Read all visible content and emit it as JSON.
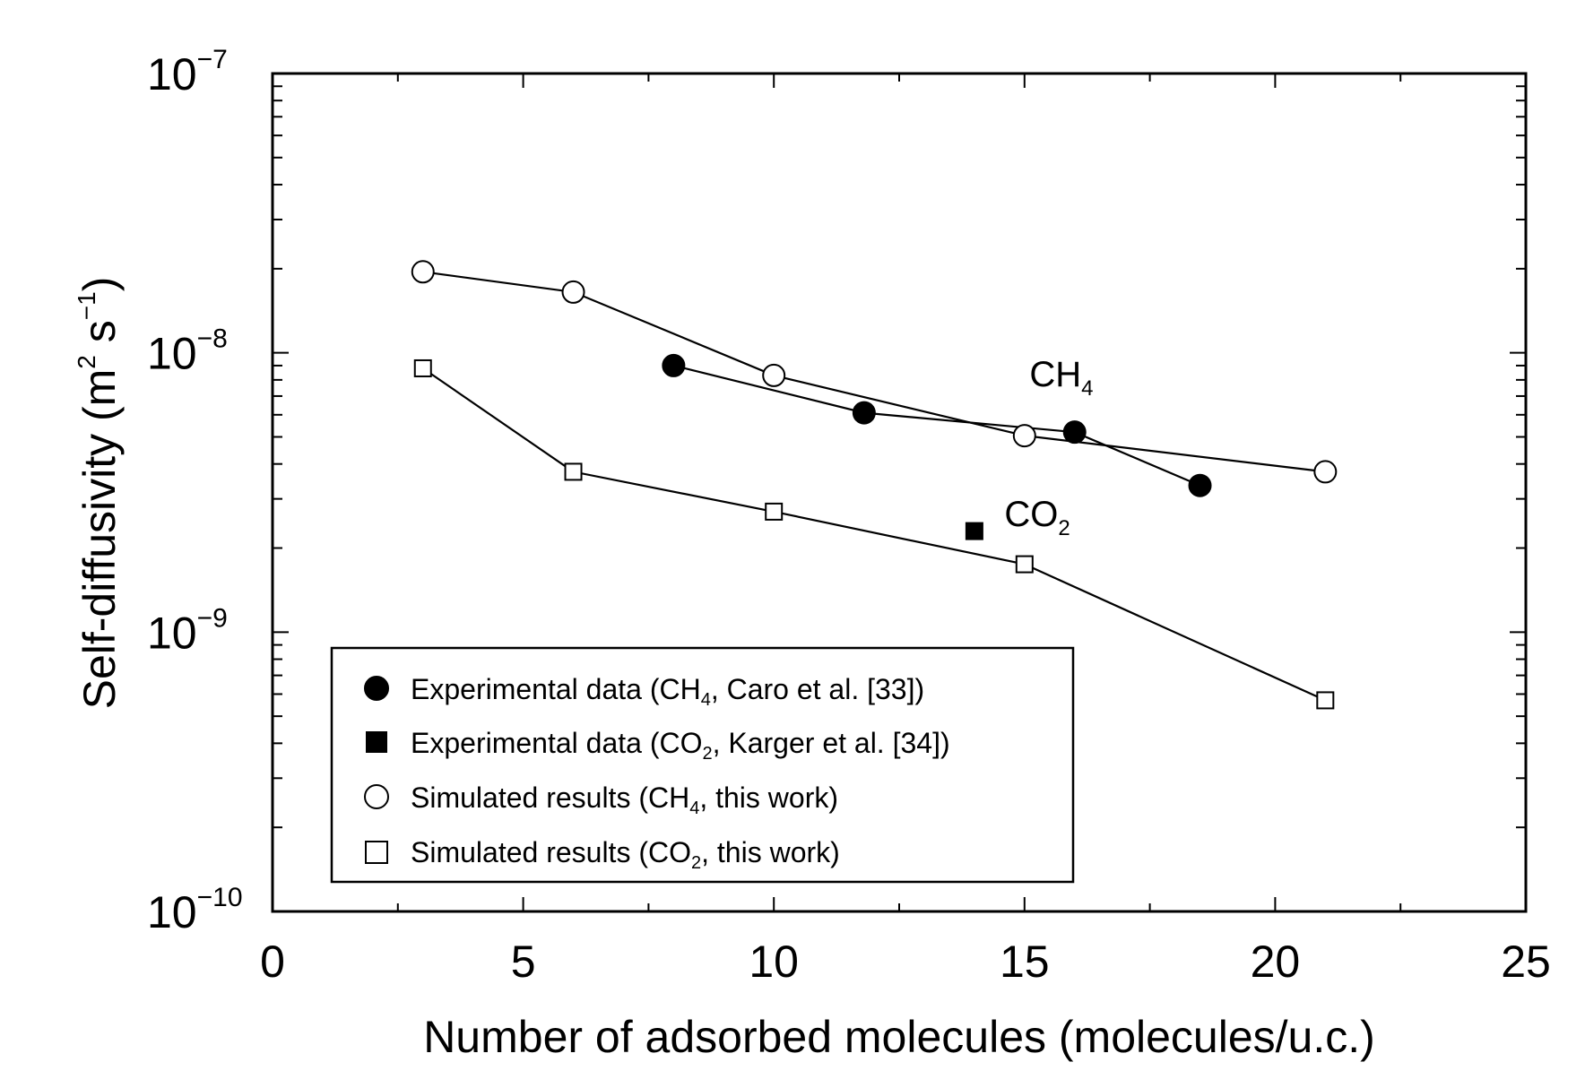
{
  "chart_data": {
    "type": "scatter",
    "title": "",
    "xlabel": "Number of adsorbed molecules  (molecules/u.c.)",
    "ylabel": {
      "main": "Self-diffusivity  (m",
      "sup1": "2",
      "mid": " s",
      "sup2": "−1",
      "end": ")"
    },
    "xlim": [
      0,
      25
    ],
    "ylim": [
      1e-10,
      1e-07
    ],
    "yscale": "log",
    "x_ticks": [
      "0",
      "5",
      "10",
      "15",
      "20",
      "25"
    ],
    "y_ticks": [
      {
        "base": "10",
        "exp": "−10"
      },
      {
        "base": "10",
        "exp": "−9"
      },
      {
        "base": "10",
        "exp": "−8"
      },
      {
        "base": "10",
        "exp": "−7"
      }
    ],
    "series": [
      {
        "name": "Experimental data (CH4, Caro et al. [33])",
        "marker": "filled-circle",
        "connected": true,
        "x": [
          8,
          11.8,
          16,
          18.5
        ],
        "y": [
          9e-09,
          6.1e-09,
          5.2e-09,
          3.35e-09
        ]
      },
      {
        "name": "Experimental data (CO2, Karger et al. [34])",
        "marker": "filled-square",
        "connected": false,
        "x": [
          14
        ],
        "y": [
          2.3e-09
        ]
      },
      {
        "name": "Simulated results (CH4, this work)",
        "marker": "open-circle",
        "connected": true,
        "x": [
          3,
          6,
          10,
          15,
          21
        ],
        "y": [
          1.95e-08,
          1.65e-08,
          8.3e-09,
          5.05e-09,
          3.75e-09
        ]
      },
      {
        "name": "Simulated results (CO2, this work)",
        "marker": "open-square",
        "connected": true,
        "x": [
          3,
          6,
          10,
          15,
          21
        ],
        "y": [
          8.8e-09,
          3.75e-09,
          2.7e-09,
          1.75e-09,
          5.7e-10
        ]
      }
    ],
    "legend": {
      "position": "bottom-left",
      "entries": [
        {
          "marker": "filled-circle",
          "pre": "Experimental data (CH",
          "sub": "4",
          "post": ", Caro et al. [33])"
        },
        {
          "marker": "filled-square",
          "pre": "Experimental data (CO",
          "sub": "2",
          "post": ", Karger et al. [34])"
        },
        {
          "marker": "open-circle",
          "pre": "Simulated results (CH",
          "sub": "4",
          "post": ", this work)"
        },
        {
          "marker": "open-square",
          "pre": "Simulated results (CO",
          "sub": "2",
          "post": ", this work)"
        }
      ]
    },
    "annotations": [
      {
        "text": "CH",
        "sub": "4",
        "x": 15.1,
        "y": 7.6e-09
      },
      {
        "text": "CO",
        "sub": "2",
        "x": 14.6,
        "y": 2.4e-09
      }
    ]
  }
}
